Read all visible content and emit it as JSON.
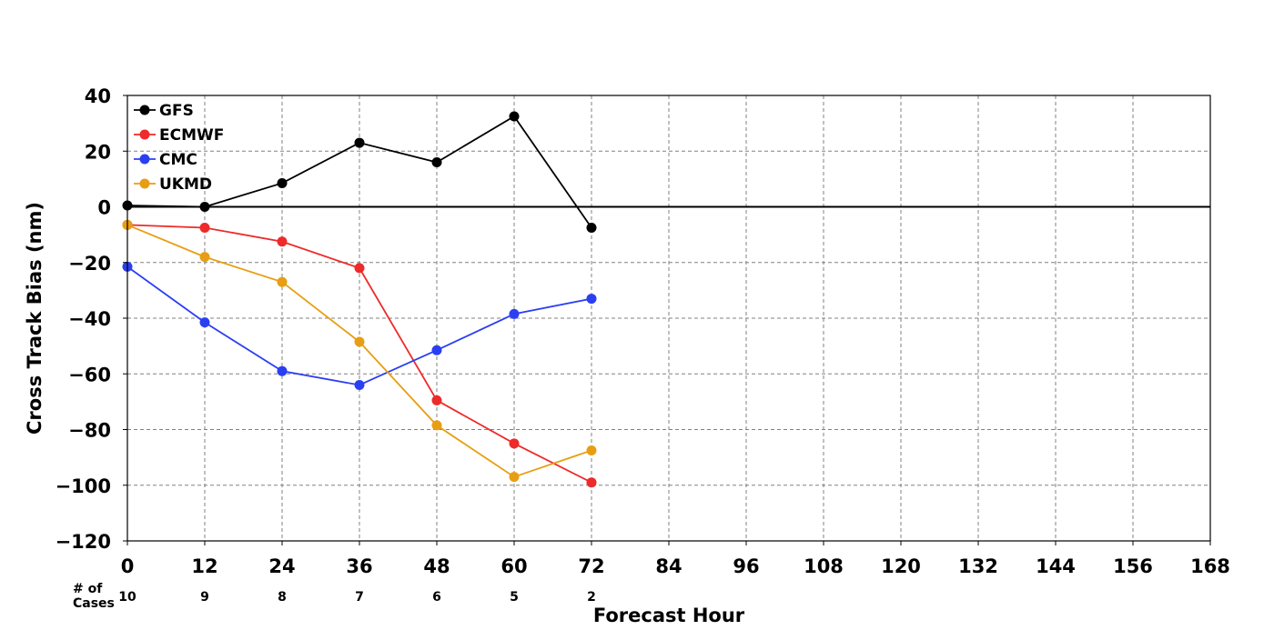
{
  "chart_data": {
    "type": "line",
    "xlabel": "Forecast Hour",
    "ylabel": "Cross Track Bias (nm)",
    "xlim": [
      0,
      168
    ],
    "ylim": [
      -120,
      40
    ],
    "x_ticks": [
      0,
      12,
      24,
      36,
      48,
      60,
      72,
      84,
      96,
      108,
      120,
      132,
      144,
      156,
      168
    ],
    "y_ticks": [
      40,
      20,
      0,
      -20,
      -40,
      -60,
      -80,
      -100,
      -120
    ],
    "grid": true,
    "legend_position": "top-left",
    "x": [
      0,
      12,
      24,
      36,
      48,
      60,
      72
    ],
    "series": [
      {
        "name": "GFS",
        "color": "#000000",
        "values": [
          0.5,
          0,
          8.5,
          23,
          16,
          32.5,
          -7.5
        ]
      },
      {
        "name": "ECMWF",
        "color": "#ee2a2a",
        "values": [
          -6.5,
          -7.5,
          -12.5,
          -22,
          -69.5,
          -85,
          -99
        ]
      },
      {
        "name": "CMC",
        "color": "#2b3ff2",
        "values": [
          -21.5,
          -41.5,
          -59,
          -64,
          -51.5,
          -38.5,
          -33
        ]
      },
      {
        "name": "UKMD",
        "color": "#e89e12",
        "values": [
          -6.5,
          -18,
          -27,
          -48.5,
          -78.5,
          -97,
          -87.5
        ]
      }
    ],
    "cases_label": "# of\nCases",
    "cases": [
      {
        "x": 0,
        "label": "10"
      },
      {
        "x": 12,
        "label": "9"
      },
      {
        "x": 24,
        "label": "8"
      },
      {
        "x": 36,
        "label": "7"
      },
      {
        "x": 48,
        "label": "6"
      },
      {
        "x": 60,
        "label": "5"
      },
      {
        "x": 72,
        "label": "2"
      }
    ],
    "zero_line": true
  }
}
